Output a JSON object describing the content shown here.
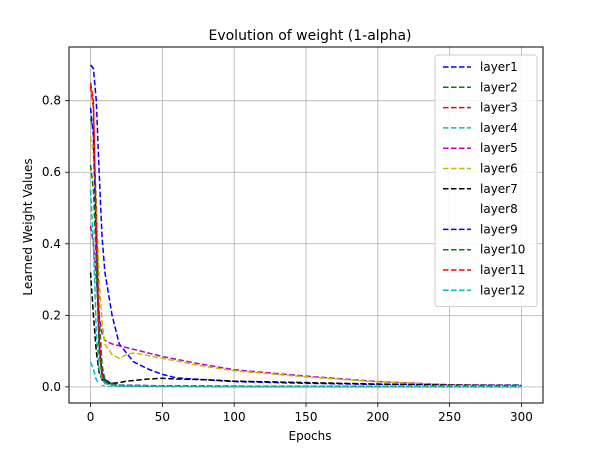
{
  "chart_data": {
    "type": "line",
    "title": "Evolution of weight (1-alpha)",
    "xlabel": "Epochs",
    "ylabel": "Learned Weight Values",
    "xlim": [
      -15,
      315
    ],
    "ylim": [
      -0.045,
      0.95
    ],
    "xticks": [
      0,
      50,
      100,
      150,
      200,
      250,
      300
    ],
    "yticks": [
      0.0,
      0.2,
      0.4,
      0.6,
      0.8
    ],
    "xtick_labels": [
      "0",
      "50",
      "100",
      "150",
      "200",
      "250",
      "300"
    ],
    "ytick_labels": [
      "0.0",
      "0.2",
      "0.4",
      "0.6",
      "0.8"
    ],
    "grid": true,
    "legend_position": "upper right",
    "series": [
      {
        "name": "layer1",
        "color": "#0000ff",
        "style": "dashed",
        "x": [
          0,
          2,
          4,
          6,
          8,
          10,
          15,
          20,
          30,
          40,
          50,
          60,
          80,
          100,
          150,
          200,
          250,
          300
        ],
        "y": [
          0.9,
          0.89,
          0.8,
          0.6,
          0.42,
          0.32,
          0.2,
          0.12,
          0.07,
          0.05,
          0.035,
          0.025,
          0.02,
          0.015,
          0.01,
          0.007,
          0.005,
          0.005
        ]
      },
      {
        "name": "layer2",
        "color": "#008000",
        "style": "dashed",
        "x": [
          0,
          2,
          4,
          6,
          8,
          10,
          15,
          20,
          50,
          100,
          300
        ],
        "y": [
          0.75,
          0.72,
          0.5,
          0.2,
          0.06,
          0.02,
          0.008,
          0.005,
          0.003,
          0.002,
          0.001
        ]
      },
      {
        "name": "layer3",
        "color": "#ff0000",
        "style": "dashed",
        "x": [
          0,
          2,
          4,
          6,
          8,
          10,
          15,
          20,
          50,
          100,
          300
        ],
        "y": [
          0.85,
          0.8,
          0.4,
          0.12,
          0.03,
          0.01,
          0.005,
          0.003,
          0.002,
          0.001,
          0.001
        ]
      },
      {
        "name": "layer4",
        "color": "#00bfbf",
        "style": "dashed",
        "x": [
          0,
          2,
          4,
          6,
          8,
          10,
          20,
          50,
          100,
          300
        ],
        "y": [
          0.07,
          0.05,
          0.02,
          0.01,
          0.005,
          0.003,
          0.002,
          0.001,
          0.001,
          0.001
        ]
      },
      {
        "name": "layer5",
        "color": "#bf00bf",
        "style": "dashed",
        "x": [
          0,
          2,
          4,
          6,
          8,
          10,
          15,
          20,
          30,
          50,
          75,
          100,
          150,
          200,
          250,
          300
        ],
        "y": [
          0.45,
          0.4,
          0.3,
          0.2,
          0.15,
          0.13,
          0.12,
          0.115,
          0.105,
          0.085,
          0.065,
          0.048,
          0.03,
          0.015,
          0.006,
          0.003
        ]
      },
      {
        "name": "layer6",
        "color": "#bfbf00",
        "style": "dashed",
        "x": [
          0,
          2,
          4,
          6,
          8,
          10,
          15,
          20,
          25,
          30,
          50,
          75,
          100,
          150,
          200,
          250,
          300
        ],
        "y": [
          0.7,
          0.65,
          0.5,
          0.3,
          0.18,
          0.12,
          0.09,
          0.08,
          0.09,
          0.095,
          0.08,
          0.06,
          0.045,
          0.028,
          0.014,
          0.006,
          0.003
        ]
      },
      {
        "name": "layer7",
        "color": "#000000",
        "style": "dashed",
        "x": [
          0,
          2,
          4,
          6,
          8,
          10,
          15,
          20,
          25,
          30,
          40,
          50,
          60,
          80,
          100,
          150,
          200,
          250,
          300
        ],
        "y": [
          0.32,
          0.2,
          0.1,
          0.04,
          0.02,
          0.012,
          0.01,
          0.012,
          0.016,
          0.018,
          0.022,
          0.024,
          0.022,
          0.02,
          0.016,
          0.012,
          0.008,
          0.005,
          0.004
        ]
      },
      {
        "name": "layer8",
        "color": "#ffffff",
        "style": "dashed",
        "x": [
          0,
          5,
          10,
          300
        ],
        "y": [
          0.02,
          0.01,
          0.005,
          0.002
        ]
      },
      {
        "name": "layer9",
        "color": "#0000ff",
        "style": "dashed",
        "x": [
          0,
          2,
          4,
          6,
          8,
          10,
          15,
          20,
          50,
          100,
          300
        ],
        "y": [
          0.78,
          0.7,
          0.4,
          0.12,
          0.04,
          0.02,
          0.01,
          0.005,
          0.003,
          0.002,
          0.001
        ]
      },
      {
        "name": "layer10",
        "color": "#008000",
        "style": "dashed",
        "x": [
          0,
          2,
          4,
          6,
          8,
          10,
          15,
          20,
          50,
          100,
          300
        ],
        "y": [
          0.62,
          0.55,
          0.35,
          0.1,
          0.03,
          0.015,
          0.008,
          0.004,
          0.003,
          0.002,
          0.001
        ]
      },
      {
        "name": "layer11",
        "color": "#ff0000",
        "style": "dashed",
        "x": [
          0,
          2,
          4,
          6,
          8,
          10,
          15,
          20,
          50,
          100,
          300
        ],
        "y": [
          0.84,
          0.78,
          0.45,
          0.15,
          0.04,
          0.01,
          0.005,
          0.003,
          0.002,
          0.001,
          0.001
        ]
      },
      {
        "name": "layer12",
        "color": "#00bfbf",
        "style": "dashed",
        "x": [
          0,
          2,
          4,
          6,
          8,
          10,
          15,
          20,
          50,
          100,
          300
        ],
        "y": [
          0.55,
          0.4,
          0.15,
          0.05,
          0.02,
          0.01,
          0.005,
          0.003,
          0.002,
          0.001,
          0.001
        ]
      }
    ]
  }
}
